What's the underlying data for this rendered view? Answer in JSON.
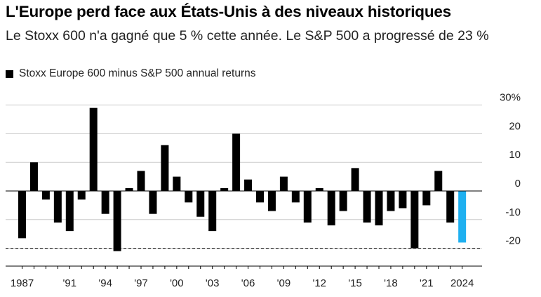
{
  "title": "L'Europe perd face aux États-Unis à des niveaux historiques",
  "subtitle": "Le Stoxx 600 n'a gagné que 5 % cette année. Le S&P 500 a progressé de 23 %",
  "colors": {
    "bar": "#000000",
    "highlight": "#1fb0f0",
    "grid": "#cccccc"
  },
  "chart_data": {
    "type": "bar",
    "title": "L'Europe perd face aux États-Unis à des niveaux historiques",
    "legend": "Stoxx Europe 600 minus S&P 500 annual returns",
    "xlabel": "",
    "ylabel": "",
    "x": [
      1987,
      1988,
      1989,
      1990,
      1991,
      1992,
      1993,
      1994,
      1995,
      1996,
      1997,
      1998,
      1999,
      2000,
      2001,
      2002,
      2003,
      2004,
      2005,
      2006,
      2007,
      2008,
      2009,
      2010,
      2011,
      2012,
      2013,
      2014,
      2015,
      2016,
      2017,
      2018,
      2019,
      2020,
      2021,
      2022,
      2023,
      2024
    ],
    "values": [
      -16.5,
      10,
      -3,
      -11,
      -14,
      -3,
      29,
      -8,
      -21,
      1,
      7,
      -8,
      16,
      5,
      -4,
      -9,
      -14,
      1,
      20,
      4,
      -4,
      -7,
      5,
      -4,
      -11,
      1,
      -12,
      -7,
      8,
      -11,
      -12,
      -7,
      -6,
      -20,
      -5,
      7,
      -11,
      -18
    ],
    "highlight_index": 37,
    "ylim": [
      -21,
      30
    ],
    "y_ticks": [
      -20,
      -10,
      0,
      10,
      20,
      30
    ],
    "y_tick_labels": [
      "-20",
      "-10",
      "0",
      "10",
      "20",
      "30%"
    ],
    "x_tick_labels": [
      "1987",
      "'91",
      "'94",
      "'97",
      "'00",
      "'03",
      "'06",
      "'09",
      "'12",
      "'15",
      "'18",
      "'21",
      "2024"
    ],
    "x_tick_years": [
      1987,
      1991,
      1994,
      1997,
      2000,
      2003,
      2006,
      2009,
      2012,
      2015,
      2018,
      2021,
      2024
    ],
    "reference_line": -20
  }
}
